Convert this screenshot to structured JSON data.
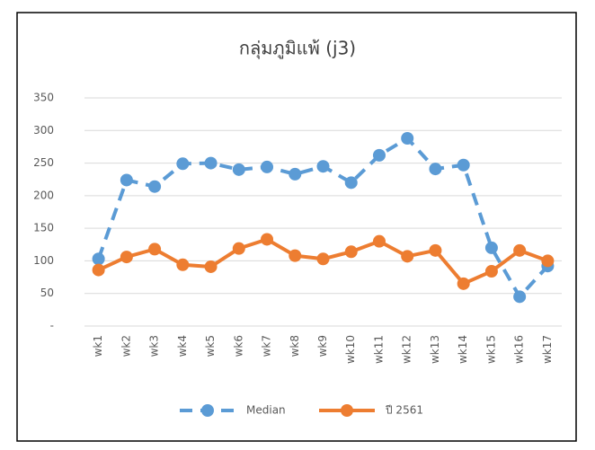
{
  "chart_data": {
    "type": "line",
    "title": "กลุ่มภูมิแพ้ (j3)",
    "categories": [
      "wk1",
      "wk2",
      "wk3",
      "wk4",
      "wk5",
      "wk6",
      "wk7",
      "wk8",
      "wk9",
      "wk10",
      "wk11",
      "wk12",
      "wk13",
      "wk14",
      "wk15",
      "wk16",
      "wk17"
    ],
    "series": [
      {
        "name": "Median",
        "color": "#5b9bd5",
        "dashed": true,
        "values": [
          103,
          224,
          214,
          249,
          250,
          240,
          244,
          233,
          245,
          220,
          262,
          288,
          241,
          247,
          120,
          45,
          92
        ]
      },
      {
        "name": "ปี 2561",
        "color": "#ed7d31",
        "dashed": false,
        "values": [
          86,
          106,
          118,
          94,
          91,
          119,
          133,
          108,
          103,
          114,
          130,
          107,
          116,
          65,
          84,
          116,
          100
        ]
      }
    ],
    "ylim": [
      0,
      350
    ],
    "yticks": [
      {
        "value": 0,
        "label": "-"
      },
      50,
      100,
      150,
      200,
      250,
      300,
      350
    ],
    "grid": true,
    "legend": "bottom"
  }
}
